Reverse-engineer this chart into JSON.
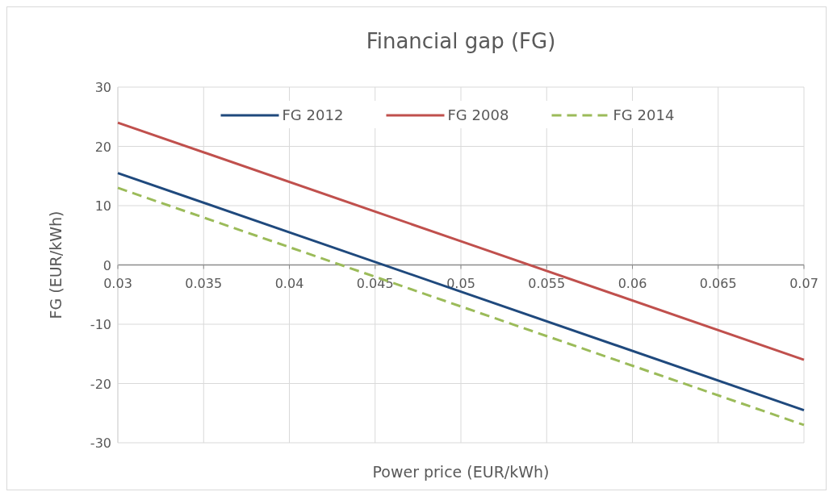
{
  "chart_data": {
    "type": "line",
    "title": "Financial gap (FG)",
    "xlabel": "Power price (EUR/kWh)",
    "ylabel": "FG (EUR/kWh)",
    "x": [
      0.03,
      0.05,
      0.07
    ],
    "series": [
      {
        "name": "FG 2012",
        "color": "#1f497d",
        "values": [
          15.5,
          -4.5,
          -24.5
        ]
      },
      {
        "name": "FG 2008",
        "color": "#c0504d",
        "values": [
          24,
          4,
          -16
        ]
      },
      {
        "name": "FG 2014",
        "color": "#9bbb59",
        "values": [
          13,
          -7,
          -27
        ],
        "line_style": "dashed"
      }
    ],
    "xlim": [
      0.03,
      0.07
    ],
    "xticks": [
      0.03,
      0.035,
      0.04,
      0.045,
      0.05,
      0.055,
      0.06,
      0.065,
      0.07
    ],
    "ylim": [
      -30,
      30
    ],
    "yticks": [
      -30,
      -20,
      -10,
      0,
      10,
      20,
      30
    ],
    "grid": true,
    "legend": "top",
    "marker": "none"
  }
}
